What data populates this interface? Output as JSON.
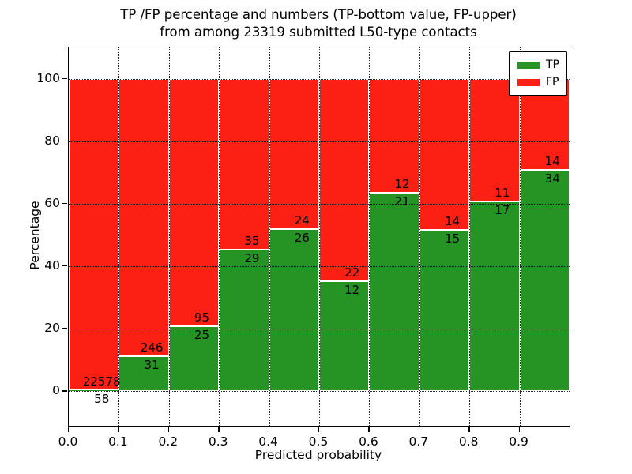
{
  "title": {
    "line1": "TP /FP percentage and numbers (TP-bottom value, FP-upper)",
    "line2": "from among 23319 submitted L50-type contacts"
  },
  "axes": {
    "xlabel": "Predicted probability",
    "ylabel": "Percentage",
    "x_tick_labels": [
      "0.0",
      "0.1",
      "0.2",
      "0.3",
      "0.4",
      "0.5",
      "0.6",
      "0.7",
      "0.8",
      "0.9"
    ],
    "y_tick_labels": [
      "0",
      "20",
      "40",
      "60",
      "80",
      "100"
    ],
    "y_tick_values": [
      0,
      20,
      40,
      60,
      80,
      100
    ]
  },
  "legend": {
    "items": [
      {
        "label": "TP",
        "color_key": "tp"
      },
      {
        "label": "FP",
        "color_key": "fp"
      }
    ]
  },
  "colors": {
    "tp": "#259425",
    "fp": "#fc2014",
    "text": "#000000",
    "grid": "#000000",
    "bar_edge": "#ffffff"
  },
  "chart_data": {
    "type": "bar",
    "stacked": true,
    "normalized": "each bin scaled to 100%",
    "title": "TP /FP percentage and numbers (TP-bottom value, FP-upper) from among 23319 submitted L50-type contacts",
    "xlabel": "Predicted probability",
    "ylabel": "Percentage",
    "categories": [
      "0.0-0.1",
      "0.1-0.2",
      "0.2-0.3",
      "0.3-0.4",
      "0.4-0.5",
      "0.5-0.6",
      "0.6-0.7",
      "0.7-0.8",
      "0.8-0.9",
      "0.9-1.0"
    ],
    "bin_edges": [
      0.0,
      0.1,
      0.2,
      0.3,
      0.4,
      0.5,
      0.6,
      0.7,
      0.8,
      0.9,
      1.0
    ],
    "series": [
      {
        "name": "TP",
        "counts": [
          58,
          31,
          25,
          29,
          26,
          12,
          21,
          15,
          17,
          34
        ]
      },
      {
        "name": "FP",
        "counts": [
          22578,
          246,
          95,
          35,
          24,
          22,
          12,
          14,
          11,
          14
        ]
      }
    ],
    "tp_percent_of_bin": [
      0.26,
      11.19,
      20.83,
      45.31,
      52.0,
      35.29,
      63.64,
      51.72,
      60.71,
      70.83
    ],
    "total_contacts": 23319,
    "xlim": [
      0.0,
      1.0
    ],
    "ylim": [
      -11,
      110
    ],
    "x_ticks": [
      0.0,
      0.1,
      0.2,
      0.3,
      0.4,
      0.5,
      0.6,
      0.7,
      0.8,
      0.9
    ],
    "y_ticks": [
      0,
      20,
      40,
      60,
      80,
      100
    ],
    "grid": true,
    "grid_style": "dotted both axes",
    "legend_position": "upper right",
    "bar_label_rule": "TP count below segment boundary, FP count above segment boundary"
  }
}
